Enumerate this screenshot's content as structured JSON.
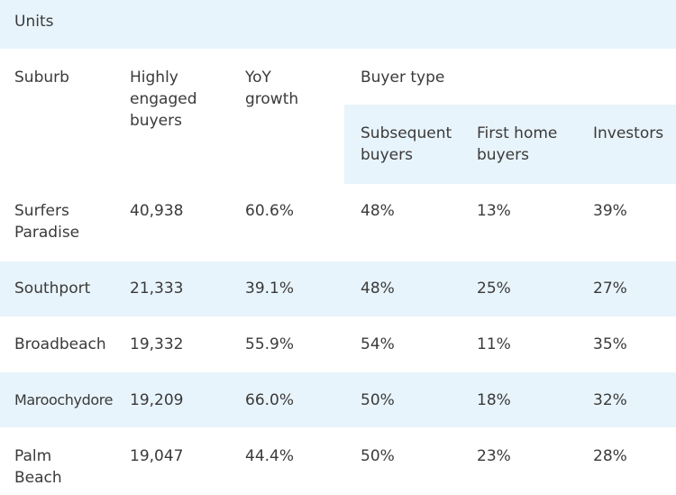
{
  "title": "Units",
  "headers": {
    "suburb": "Suburb",
    "highly_engaged": [
      "Highly",
      "engaged",
      "buyers"
    ],
    "yoy": [
      "YoY",
      "growth"
    ],
    "buyer_type": "Buyer type",
    "subsequent": [
      "Subsequent",
      "buyers"
    ],
    "first_home": [
      "First home",
      "buyers"
    ],
    "investors": "Investors"
  },
  "rows": [
    {
      "suburb": [
        "Surfers",
        "Paradise"
      ],
      "buyers": "40,938",
      "yoy": "60.6%",
      "subsequent": "48%",
      "first_home": "13%",
      "investors": "39%"
    },
    {
      "suburb": [
        "Southport"
      ],
      "buyers": "21,333",
      "yoy": "39.1%",
      "subsequent": "48%",
      "first_home": "25%",
      "investors": "27%"
    },
    {
      "suburb": [
        "Broadbeach"
      ],
      "buyers": "19,332",
      "yoy": "55.9%",
      "subsequent": "54%",
      "first_home": "11%",
      "investors": "35%"
    },
    {
      "suburb": [
        "Maroochydore"
      ],
      "buyers": "19,209",
      "yoy": "66.0%",
      "subsequent": "50%",
      "first_home": "18%",
      "investors": "32%"
    },
    {
      "suburb": [
        "Palm",
        "Beach"
      ],
      "buyers": "19,047",
      "yoy": "44.4%",
      "subsequent": "50%",
      "first_home": "23%",
      "investors": "28%"
    }
  ],
  "colors": {
    "shade": "#e8f4fb",
    "text": "#3a3a3a"
  }
}
